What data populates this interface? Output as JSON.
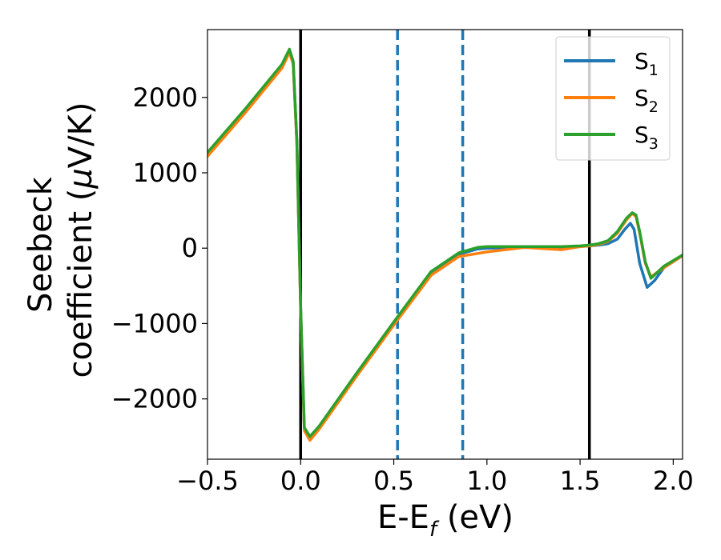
{
  "chart_data": {
    "type": "line",
    "xlabel": {
      "main": "E-E",
      "sub": "f",
      "unit": " (eV)"
    },
    "ylabel": {
      "line1": "Seebeck",
      "line2_main": "coefficient  (",
      "line2_mu": "μ",
      "line2_unit": "V/K)"
    },
    "xlim": [
      -0.5,
      2.05
    ],
    "ylim": [
      -2800,
      2900
    ],
    "x_ticks": [
      -0.5,
      0.0,
      0.5,
      1.0,
      1.5,
      2.0
    ],
    "x_tick_labels": [
      "−0.5",
      "0.0",
      "0.5",
      "1.0",
      "1.5",
      "2.0"
    ],
    "y_ticks": [
      -2000,
      -1000,
      0,
      1000,
      2000
    ],
    "y_tick_labels": [
      "−2000",
      "−1000",
      "0",
      "1000",
      "2000"
    ],
    "grid": false,
    "legend_position": "top-right",
    "vlines": [
      {
        "x": 0.0,
        "style": "solid",
        "color": "#000000"
      },
      {
        "x": 1.55,
        "style": "solid",
        "color": "#000000"
      },
      {
        "x": 0.52,
        "style": "dashed",
        "color": "#1f77b4"
      },
      {
        "x": 0.87,
        "style": "dashed",
        "color": "#1f77b4"
      }
    ],
    "series": [
      {
        "name": "S",
        "sub": "1",
        "color": "#1f77b4",
        "x": [
          -0.5,
          -0.3,
          -0.1,
          -0.06,
          -0.04,
          -0.02,
          0.0,
          0.02,
          0.05,
          0.1,
          0.3,
          0.5,
          0.7,
          0.85,
          0.95,
          1.0,
          1.2,
          1.4,
          1.5,
          1.55,
          1.6,
          1.65,
          1.7,
          1.74,
          1.77,
          1.79,
          1.82,
          1.86,
          1.9,
          1.95,
          2.05
        ],
        "y": [
          1250,
          1820,
          2420,
          2620,
          2460,
          1400,
          -800,
          -2400,
          -2520,
          -2380,
          -1680,
          -1000,
          -330,
          -80,
          -10,
          0,
          10,
          10,
          20,
          30,
          40,
          60,
          120,
          250,
          330,
          250,
          -200,
          -520,
          -430,
          -260,
          -100
        ]
      },
      {
        "name": "S",
        "sub": "2",
        "color": "#ff7f0e",
        "x": [
          -0.5,
          -0.3,
          -0.1,
          -0.06,
          -0.04,
          -0.02,
          0.0,
          0.02,
          0.05,
          0.1,
          0.3,
          0.5,
          0.7,
          0.85,
          0.95,
          1.0,
          1.2,
          1.4,
          1.5,
          1.55,
          1.6,
          1.65,
          1.7,
          1.75,
          1.78,
          1.8,
          1.82,
          1.85,
          1.88,
          1.95,
          2.05
        ],
        "y": [
          1220,
          1790,
          2390,
          2600,
          2440,
          1380,
          -820,
          -2420,
          -2550,
          -2400,
          -1700,
          -1020,
          -360,
          -110,
          -70,
          -50,
          10,
          -20,
          20,
          30,
          50,
          90,
          200,
          380,
          460,
          420,
          200,
          -200,
          -380,
          -260,
          -100
        ]
      },
      {
        "name": "S",
        "sub": "3",
        "color": "#2ca02c",
        "x": [
          -0.5,
          -0.3,
          -0.1,
          -0.06,
          -0.04,
          -0.02,
          0.0,
          0.02,
          0.05,
          0.1,
          0.3,
          0.5,
          0.7,
          0.85,
          0.95,
          1.0,
          1.2,
          1.4,
          1.5,
          1.55,
          1.6,
          1.65,
          1.7,
          1.75,
          1.78,
          1.8,
          1.82,
          1.85,
          1.88,
          1.95,
          2.05
        ],
        "y": [
          1270,
          1840,
          2440,
          2640,
          2480,
          1420,
          -780,
          -2380,
          -2500,
          -2360,
          -1660,
          -980,
          -310,
          -60,
          10,
          20,
          20,
          20,
          30,
          40,
          60,
          100,
          220,
          400,
          470,
          440,
          220,
          -180,
          -400,
          -240,
          -90
        ]
      }
    ]
  }
}
